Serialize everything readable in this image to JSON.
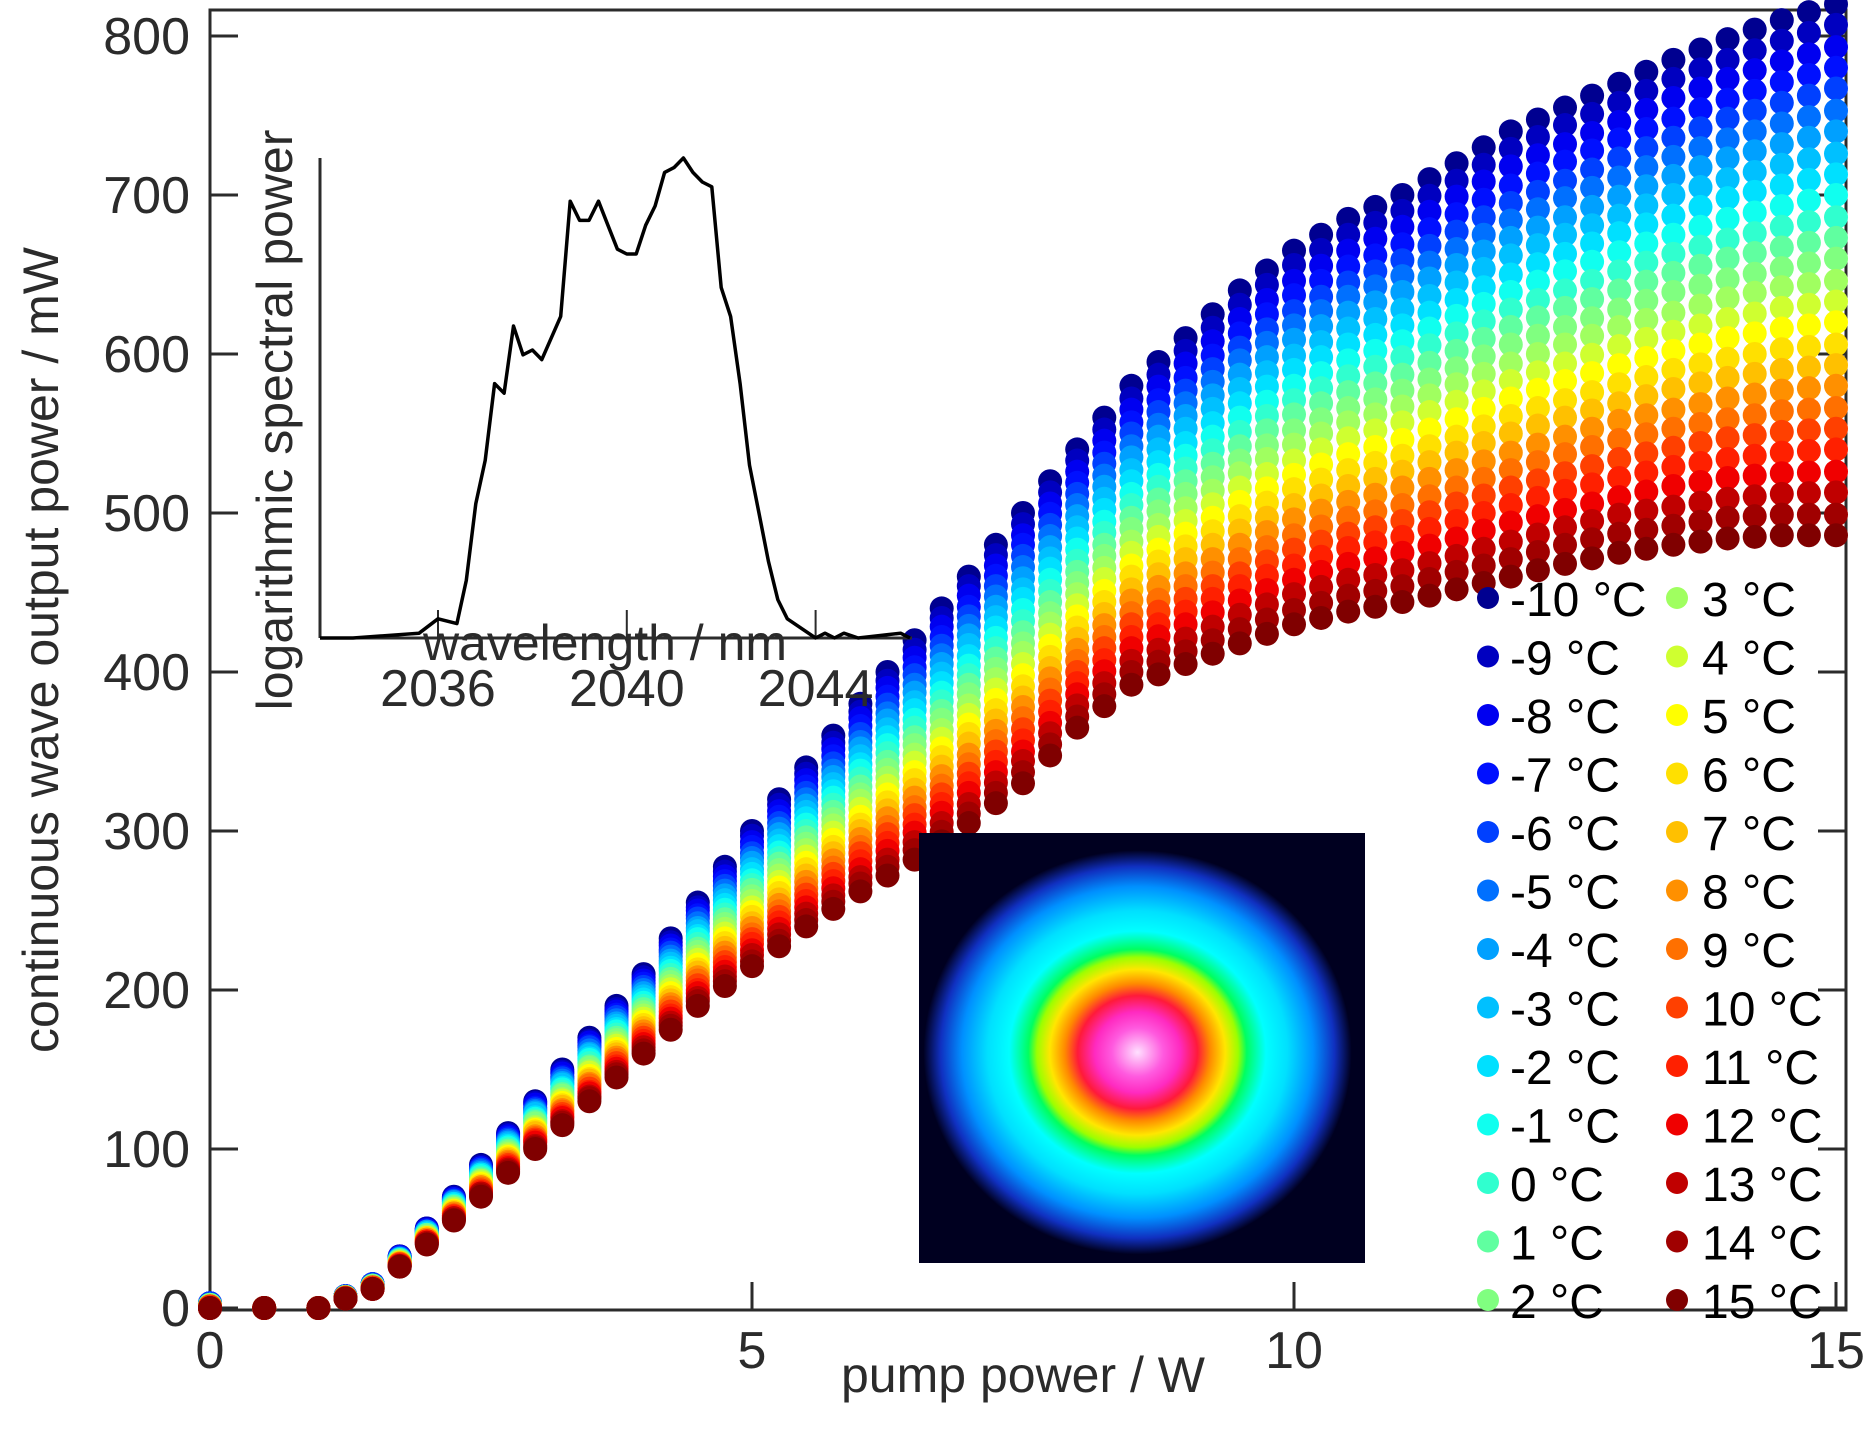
{
  "chart_data": [
    {
      "type": "scatter",
      "title": "",
      "xlabel": "pump power / W",
      "ylabel": "continuous wave output power / mW",
      "xlim": [
        0,
        15.2
      ],
      "ylim": [
        0,
        820
      ],
      "xticks": [
        0,
        5,
        10,
        15
      ],
      "xtick_labels": [
        "0",
        "5",
        "10",
        "15"
      ],
      "yticks": [
        0,
        100,
        200,
        300,
        400,
        500,
        600,
        700,
        800
      ],
      "ytick_labels": [
        "0",
        "100",
        "200",
        "300",
        "400",
        "500",
        "600",
        "700",
        "800"
      ],
      "grid": false,
      "legend_position": "bottom-right",
      "legend_columns": 2,
      "x": [
        0,
        0.5,
        1,
        1.5,
        2,
        2.5,
        3,
        3.5,
        4,
        4.5,
        5,
        5.5,
        6,
        6.5,
        7,
        7.5,
        8,
        8.5,
        9,
        9.5,
        10,
        10.5,
        11,
        11.5,
        12,
        12.5,
        13,
        13.5,
        14,
        14.5,
        15
      ],
      "series": [
        {
          "name": "-10 °C",
          "color": "#000090",
          "values": [
            3,
            0,
            0,
            15,
            50,
            90,
            130,
            170,
            210,
            255,
            300,
            340,
            380,
            420,
            460,
            500,
            540,
            580,
            610,
            640,
            665,
            685,
            700,
            720,
            740,
            755,
            770,
            785,
            798,
            810,
            820
          ]
        },
        {
          "name": "-9 °C",
          "color": "#0000C0",
          "values": [
            3,
            0,
            0,
            15,
            50,
            89,
            129,
            168,
            208,
            252,
            297,
            336,
            375,
            414,
            454,
            493,
            533,
            572,
            602,
            631,
            656,
            675,
            690,
            709,
            729,
            744,
            758,
            773,
            785,
            797,
            807
          ]
        },
        {
          "name": "-8 °C",
          "color": "#0000F0",
          "values": [
            3,
            0,
            0,
            15,
            49,
            88,
            128,
            167,
            206,
            250,
            293,
            332,
            371,
            409,
            448,
            486,
            526,
            565,
            594,
            622,
            646,
            665,
            680,
            699,
            718,
            732,
            746,
            761,
            773,
            784,
            793
          ]
        },
        {
          "name": "-7 °C",
          "color": "#0010FF",
          "values": [
            3,
            0,
            0,
            15,
            49,
            88,
            126,
            165,
            204,
            247,
            290,
            328,
            366,
            403,
            441,
            480,
            519,
            557,
            585,
            613,
            637,
            655,
            669,
            688,
            706,
            721,
            735,
            748,
            760,
            771,
            780
          ]
        },
        {
          "name": "-6 °C",
          "color": "#0040FF",
          "values": [
            3,
            0,
            0,
            15,
            48,
            87,
            125,
            164,
            202,
            245,
            286,
            324,
            361,
            398,
            435,
            473,
            512,
            550,
            577,
            604,
            627,
            645,
            659,
            677,
            695,
            709,
            723,
            736,
            748,
            758,
            767
          ]
        },
        {
          "name": "-5 °C",
          "color": "#0070FF",
          "values": [
            2,
            0,
            0,
            14,
            48,
            86,
            124,
            162,
            200,
            242,
            283,
            320,
            356,
            392,
            429,
            466,
            505,
            542,
            569,
            596,
            618,
            636,
            649,
            666,
            684,
            698,
            711,
            724,
            735,
            745,
            753
          ]
        },
        {
          "name": "-4 °C",
          "color": "#00A0FF",
          "values": [
            2,
            0,
            0,
            14,
            48,
            85,
            123,
            160,
            198,
            239,
            280,
            316,
            352,
            387,
            423,
            459,
            498,
            535,
            561,
            587,
            609,
            626,
            639,
            656,
            673,
            686,
            699,
            712,
            723,
            732,
            740
          ]
        },
        {
          "name": "-3 °C",
          "color": "#00C0FF",
          "values": [
            2,
            0,
            0,
            14,
            47,
            84,
            122,
            159,
            196,
            237,
            276,
            312,
            347,
            381,
            417,
            452,
            491,
            527,
            553,
            578,
            599,
            616,
            628,
            645,
            662,
            675,
            687,
            700,
            710,
            719,
            726
          ]
        },
        {
          "name": "-2 °C",
          "color": "#00E0FF",
          "values": [
            2,
            0,
            0,
            14,
            47,
            84,
            120,
            157,
            194,
            234,
            273,
            308,
            342,
            376,
            410,
            446,
            484,
            520,
            544,
            569,
            590,
            606,
            618,
            634,
            650,
            663,
            676,
            687,
            698,
            706,
            713
          ]
        },
        {
          "name": "-1 °C",
          "color": "#10FFEF",
          "values": [
            2,
            0,
            0,
            14,
            46,
            83,
            119,
            156,
            192,
            232,
            269,
            304,
            338,
            370,
            404,
            439,
            477,
            512,
            536,
            560,
            580,
            596,
            608,
            624,
            639,
            652,
            664,
            675,
            685,
            693,
            700
          ]
        },
        {
          "name": "0 °C",
          "color": "#30FFCF",
          "values": [
            2,
            0,
            0,
            14,
            46,
            82,
            118,
            154,
            190,
            229,
            266,
            300,
            333,
            365,
            398,
            432,
            470,
            505,
            528,
            551,
            571,
            586,
            598,
            613,
            628,
            640,
            652,
            663,
            672,
            680,
            686
          ]
        },
        {
          "name": "1 °C",
          "color": "#60FFA0",
          "values": [
            2,
            0,
            0,
            14,
            46,
            81,
            117,
            152,
            188,
            226,
            263,
            296,
            328,
            359,
            392,
            425,
            463,
            497,
            520,
            542,
            562,
            576,
            587,
            602,
            617,
            629,
            640,
            651,
            660,
            667,
            673
          ]
        },
        {
          "name": "2 °C",
          "color": "#80FF80",
          "values": [
            2,
            0,
            0,
            14,
            45,
            80,
            116,
            151,
            186,
            224,
            259,
            292,
            323,
            354,
            386,
            418,
            456,
            490,
            512,
            533,
            552,
            566,
            577,
            591,
            606,
            617,
            628,
            639,
            647,
            654,
            660
          ]
        },
        {
          "name": "3 °C",
          "color": "#A0FF60",
          "values": [
            1,
            0,
            0,
            13,
            45,
            80,
            114,
            149,
            184,
            221,
            256,
            288,
            319,
            348,
            379,
            412,
            449,
            482,
            503,
            525,
            543,
            557,
            567,
            581,
            594,
            606,
            617,
            626,
            635,
            642,
            646
          ]
        },
        {
          "name": "4 °C",
          "color": "#CFFF30",
          "values": [
            1,
            0,
            0,
            13,
            44,
            79,
            113,
            148,
            182,
            219,
            252,
            284,
            314,
            343,
            373,
            405,
            442,
            475,
            495,
            516,
            533,
            547,
            557,
            570,
            583,
            594,
            605,
            614,
            622,
            629,
            633
          ]
        },
        {
          "name": "5 °C",
          "color": "#FFFF00",
          "values": [
            1,
            0,
            0,
            13,
            44,
            78,
            112,
            146,
            180,
            216,
            249,
            280,
            309,
            337,
            367,
            398,
            435,
            467,
            487,
            507,
            524,
            537,
            546,
            559,
            572,
            583,
            593,
            602,
            610,
            616,
            620
          ]
        },
        {
          "name": "6 °C",
          "color": "#FFE000",
          "values": [
            1,
            0,
            0,
            13,
            44,
            77,
            111,
            144,
            178,
            213,
            246,
            276,
            304,
            332,
            361,
            391,
            428,
            460,
            479,
            498,
            515,
            527,
            536,
            548,
            561,
            571,
            581,
            590,
            597,
            603,
            606
          ]
        },
        {
          "name": "7 °C",
          "color": "#FFC000",
          "values": [
            1,
            0,
            0,
            13,
            43,
            76,
            110,
            143,
            176,
            211,
            242,
            272,
            300,
            326,
            355,
            384,
            421,
            452,
            471,
            489,
            505,
            517,
            526,
            538,
            550,
            560,
            569,
            578,
            585,
            590,
            593
          ]
        },
        {
          "name": "8 °C",
          "color": "#FF9000",
          "values": [
            1,
            0,
            0,
            13,
            43,
            76,
            108,
            141,
            174,
            208,
            239,
            268,
            295,
            321,
            348,
            378,
            414,
            445,
            462,
            480,
            496,
            507,
            516,
            527,
            538,
            548,
            558,
            565,
            572,
            577,
            580
          ]
        },
        {
          "name": "9 °C",
          "color": "#FF7000",
          "values": [
            1,
            0,
            0,
            13,
            42,
            75,
            107,
            140,
            172,
            206,
            235,
            264,
            290,
            315,
            342,
            371,
            407,
            437,
            454,
            471,
            486,
            497,
            505,
            516,
            527,
            537,
            546,
            553,
            559,
            564,
            566
          ]
        },
        {
          "name": "10 °C",
          "color": "#FF4000",
          "values": [
            1,
            0,
            0,
            13,
            42,
            74,
            106,
            138,
            170,
            203,
            232,
            260,
            286,
            310,
            336,
            364,
            400,
            430,
            446,
            462,
            477,
            487,
            495,
            506,
            516,
            525,
            534,
            541,
            547,
            551,
            553
          ]
        },
        {
          "name": "11 °C",
          "color": "#FF2000",
          "values": [
            0,
            0,
            0,
            12,
            42,
            73,
            105,
            136,
            168,
            200,
            229,
            256,
            281,
            304,
            330,
            357,
            393,
            422,
            438,
            454,
            467,
            478,
            485,
            495,
            505,
            514,
            522,
            529,
            534,
            538,
            540
          ]
        },
        {
          "name": "12 °C",
          "color": "#F00000",
          "values": [
            0,
            0,
            0,
            12,
            41,
            72,
            104,
            135,
            166,
            198,
            225,
            252,
            276,
            299,
            324,
            350,
            386,
            415,
            430,
            445,
            458,
            468,
            475,
            484,
            494,
            502,
            510,
            517,
            522,
            525,
            526
          ]
        },
        {
          "name": "13 °C",
          "color": "#C00000",
          "values": [
            0,
            0,
            0,
            12,
            41,
            72,
            102,
            133,
            164,
            195,
            222,
            248,
            271,
            293,
            317,
            344,
            379,
            407,
            421,
            436,
            449,
            458,
            464,
            473,
            482,
            491,
            499,
            504,
            509,
            512,
            513
          ]
        },
        {
          "name": "14 °C",
          "color": "#A00000",
          "values": [
            0,
            0,
            0,
            12,
            40,
            71,
            101,
            132,
            162,
            193,
            218,
            244,
            267,
            288,
            311,
            337,
            372,
            400,
            413,
            427,
            439,
            448,
            454,
            463,
            471,
            480,
            487,
            492,
            497,
            499,
            499
          ]
        },
        {
          "name": "15 °C",
          "color": "#800000",
          "values": [
            0,
            0,
            0,
            12,
            40,
            70,
            100,
            130,
            160,
            190,
            215,
            240,
            262,
            282,
            305,
            330,
            365,
            392,
            405,
            418,
            430,
            438,
            444,
            452,
            460,
            468,
            475,
            480,
            484,
            486,
            486
          ]
        }
      ]
    },
    {
      "type": "line",
      "title": "",
      "xlabel": "wavelength / nm",
      "ylabel": "logarithmic spectral power",
      "xlim": [
        2033.5,
        2046
      ],
      "ylim": [
        0,
        1
      ],
      "xticks": [
        2036,
        2040,
        2044
      ],
      "xtick_labels": [
        "2036",
        "2040",
        "2044"
      ],
      "yticks": [],
      "grid": false,
      "color": "#000000",
      "x": [
        2033.5,
        2034.2,
        2035.6,
        2036,
        2036.4,
        2036.6,
        2036.8,
        2037,
        2037.2,
        2037.4,
        2037.6,
        2037.8,
        2038,
        2038.2,
        2038.6,
        2038.8,
        2039,
        2039.2,
        2039.4,
        2039.6,
        2039.8,
        2040,
        2040.2,
        2040.4,
        2040.6,
        2040.8,
        2041,
        2041.2,
        2041.4,
        2041.6,
        2041.8,
        2042,
        2042.2,
        2042.4,
        2042.6,
        2042.8,
        2043,
        2043.2,
        2043.4,
        2044,
        2044.2,
        2044.4,
        2044.6,
        2044.9,
        2045.8,
        2046
      ],
      "values": [
        0,
        0,
        0.01,
        0.04,
        0.03,
        0.12,
        0.28,
        0.37,
        0.53,
        0.51,
        0.65,
        0.59,
        0.6,
        0.58,
        0.67,
        0.91,
        0.87,
        0.87,
        0.91,
        0.86,
        0.81,
        0.8,
        0.8,
        0.86,
        0.9,
        0.97,
        0.98,
        1,
        0.97,
        0.95,
        0.94,
        0.73,
        0.67,
        0.53,
        0.36,
        0.26,
        0.16,
        0.08,
        0.04,
        0,
        0.01,
        0,
        0.01,
        0,
        0.01,
        0
      ]
    }
  ],
  "beam_profile": {
    "description": "false-color beam profile image",
    "colormap": [
      "#000020",
      "#1030c0",
      "#0090ff",
      "#00ffff",
      "#00ff60",
      "#ffe600",
      "#ff8a00",
      "#ff1a3a",
      "#ff2ac0",
      "#ffe0ff"
    ]
  }
}
